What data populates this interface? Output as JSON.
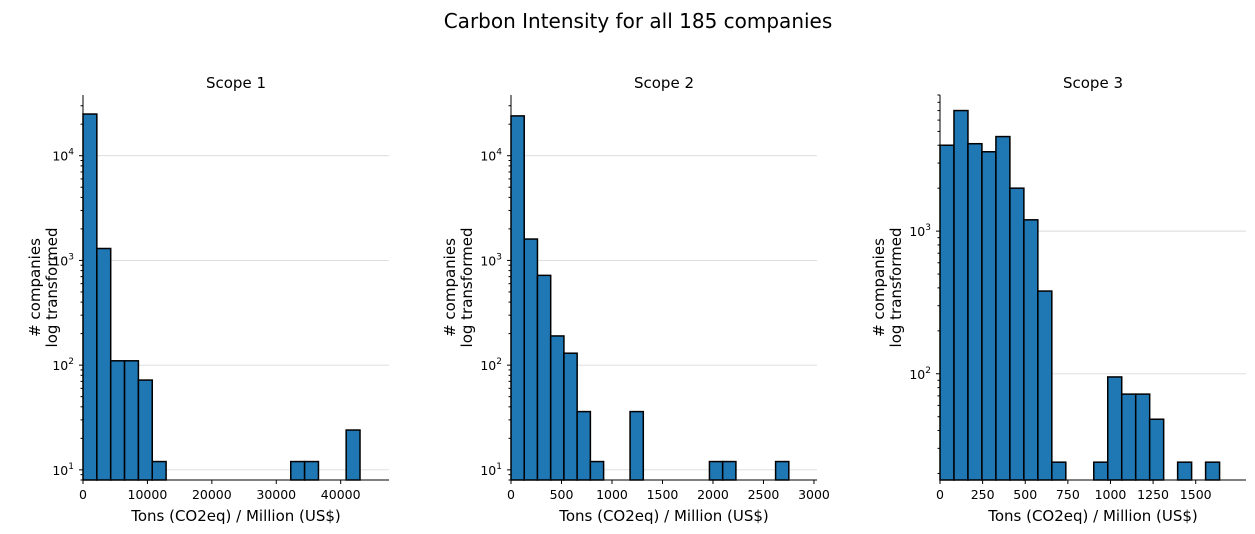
{
  "figure": {
    "title": "Carbon Intensity for all 185 companies"
  },
  "chart_data": [
    {
      "type": "bar",
      "subtype": "histogram",
      "title": "Scope 1",
      "xlabel": "Tons (CO2eq) / Million (US$)",
      "ylabel_lines": [
        "# companies",
        "log transformed"
      ],
      "yscale": "log",
      "xlim": [
        0,
        47500
      ],
      "ylim": [
        8,
        38000
      ],
      "grid": "y-major",
      "bin_edges": [
        0,
        2150,
        4300,
        6450,
        8600,
        10750,
        12900,
        15050,
        17200,
        19350,
        21500,
        23650,
        25800,
        27950,
        30100,
        32250,
        34400,
        36550,
        38700,
        40850,
        43000
      ],
      "values": [
        25000,
        1300,
        110,
        110,
        72,
        12,
        0,
        0,
        0,
        0,
        0,
        0,
        0,
        0,
        0,
        12,
        12,
        0,
        0,
        24
      ],
      "x_ticks": [
        0,
        10000,
        20000,
        30000,
        40000
      ],
      "x_tick_labels": [
        "0",
        "10000",
        "20000",
        "30000",
        "40000"
      ],
      "y_ticks": [
        10,
        100,
        1000,
        10000
      ],
      "y_tick_bases": [
        "10",
        "10",
        "10",
        "10"
      ],
      "y_tick_exps": [
        "1",
        "2",
        "3",
        "4"
      ]
    },
    {
      "type": "bar",
      "subtype": "histogram",
      "title": "Scope 2",
      "xlabel": "Tons (CO2eq) / Million (US$)",
      "ylabel_lines": [
        "# companies",
        "log transformed"
      ],
      "yscale": "log",
      "xlim": [
        0,
        3030
      ],
      "ylim": [
        8,
        38000
      ],
      "grid": "y-major",
      "bin_edges": [
        0,
        131,
        262,
        393,
        524,
        655,
        786,
        917,
        1048,
        1179,
        1310,
        1441,
        1572,
        1703,
        1834,
        1965,
        2096,
        2227,
        2358,
        2489,
        2620,
        2751
      ],
      "values": [
        24000,
        1600,
        720,
        190,
        130,
        36,
        12,
        0,
        0,
        36,
        0,
        0,
        0,
        0,
        0,
        12,
        12,
        0,
        0,
        0,
        12
      ],
      "x_ticks": [
        0,
        500,
        1000,
        1500,
        2000,
        2500,
        3000
      ],
      "x_tick_labels": [
        "0",
        "500",
        "1000",
        "1500",
        "2000",
        "2500",
        "3000"
      ],
      "y_ticks": [
        10,
        100,
        1000,
        10000
      ],
      "y_tick_bases": [
        "10",
        "10",
        "10",
        "10"
      ],
      "y_tick_exps": [
        "1",
        "2",
        "3",
        "4"
      ]
    },
    {
      "type": "bar",
      "subtype": "histogram",
      "title": "Scope 3",
      "xlabel": "Tons (CO2eq) / Million (US$)",
      "ylabel_lines": [
        "# companies",
        "log transformed"
      ],
      "yscale": "log",
      "xlim": [
        0,
        1795
      ],
      "ylim": [
        18,
        9000
      ],
      "grid": "y-major",
      "bin_edges": [
        0,
        82,
        164,
        246,
        328,
        410,
        492,
        574,
        656,
        738,
        820,
        902,
        984,
        1066,
        1148,
        1230,
        1312,
        1394,
        1476,
        1558,
        1640
      ],
      "values": [
        4000,
        7000,
        4100,
        3600,
        4600,
        2000,
        1200,
        380,
        24,
        0,
        0,
        24,
        95,
        72,
        72,
        48,
        0,
        24,
        0,
        24
      ],
      "x_ticks": [
        0,
        250,
        500,
        750,
        1000,
        1250,
        1500
      ],
      "x_tick_labels": [
        "0",
        "250",
        "500",
        "750",
        "1000",
        "1250",
        "1500"
      ],
      "y_ticks": [
        100,
        1000
      ],
      "y_tick_bases": [
        "10",
        "10"
      ],
      "y_tick_exps": [
        "2",
        "3"
      ]
    }
  ]
}
